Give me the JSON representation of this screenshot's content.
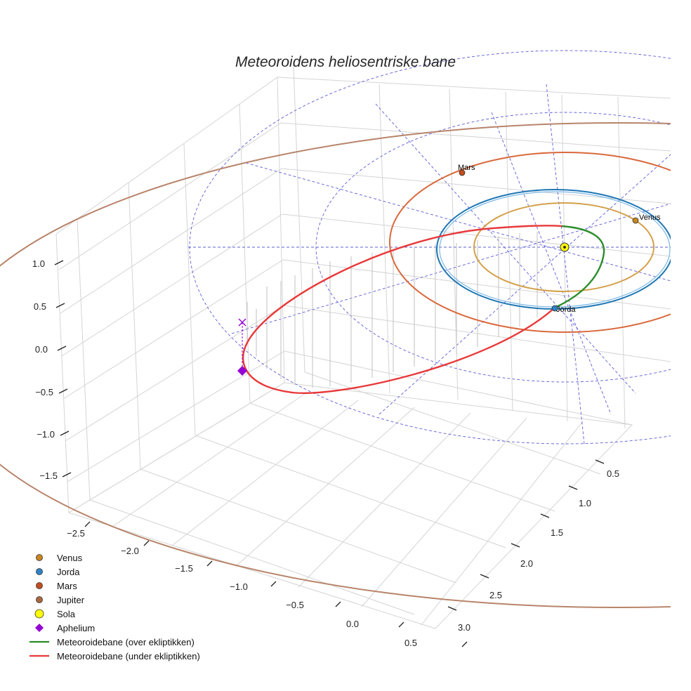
{
  "chart_data": {
    "type": "line3d",
    "title": "Meteoroidens heliosentriske bane",
    "x_axis": {
      "ticks": [
        "−2.5",
        "−2.0",
        "−1.5",
        "−1.0",
        "−0.5",
        "0.0",
        "0.5"
      ],
      "values": [
        -2.5,
        -2.0,
        -1.5,
        -1.0,
        -0.5,
        0.0,
        0.5
      ]
    },
    "y_axis": {
      "ticks": [
        "0.5",
        "1.0",
        "1.5",
        "2.0",
        "2.5",
        "3.0"
      ],
      "values": [
        0.5,
        1.0,
        1.5,
        2.0,
        2.5,
        3.0
      ]
    },
    "z_axis": {
      "ticks": [
        "1.0",
        "0.5",
        "0.0",
        "−0.5",
        "−1.0",
        "−1.5"
      ],
      "values": [
        1.0,
        0.5,
        0.0,
        -0.5,
        -1.0,
        -1.5
      ]
    },
    "orbits": [
      {
        "name": "Venus",
        "radius_au": 0.72,
        "color": "#d4a04a"
      },
      {
        "name": "Jorda",
        "radius_au": 1.0,
        "color": "#1f77b4"
      },
      {
        "name": "Mars",
        "radius_au": 1.52,
        "color": "#d9693c"
      },
      {
        "name": "Jupiter",
        "radius_au": 5.2,
        "color": "#b8846a"
      }
    ],
    "planet_labels": {
      "mars": "Mars",
      "venus": "Venus",
      "jorda": "Jorda"
    },
    "meteoroid": {
      "aphelion_au": 2.6,
      "perihelion_au": 0.72,
      "above_ecliptic_label": "Meteoroidebane (over ekliptikken)",
      "below_ecliptic_label": "Meteoroidebane (under ekliptikken)"
    },
    "legend": [
      {
        "label": "Venus",
        "marker": "circle",
        "color": "#c8861e"
      },
      {
        "label": "Jorda",
        "marker": "circle",
        "color": "#2d83c6"
      },
      {
        "label": "Mars",
        "marker": "circle",
        "color": "#c44d1c"
      },
      {
        "label": "Jupiter",
        "marker": "circle",
        "color": "#a9673e"
      },
      {
        "label": "Sola",
        "marker": "circle-large",
        "color": "#ffff00"
      },
      {
        "label": "Aphelium",
        "marker": "diamond",
        "color": "#9400d3"
      },
      {
        "label": "Meteoroidebane (over ekliptikken)",
        "marker": "line",
        "color": "#2a8c2a"
      },
      {
        "label": "Meteoroidebane (under ekliptikken)",
        "marker": "line",
        "color": "#e8393a"
      }
    ]
  }
}
